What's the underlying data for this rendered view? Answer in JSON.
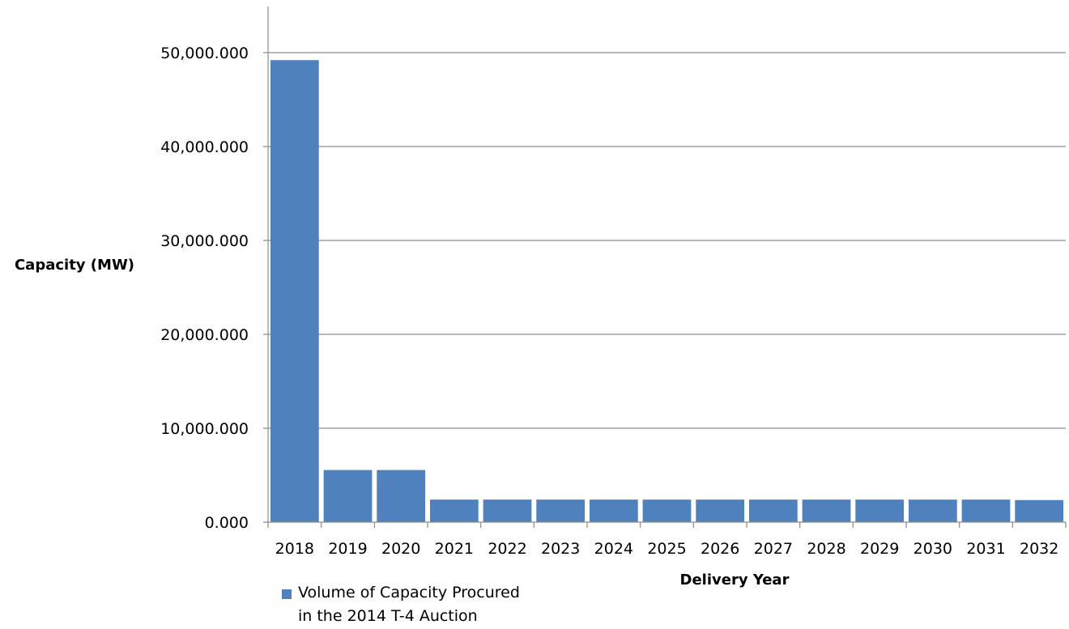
{
  "chart_data": {
    "type": "bar",
    "xlabel": "Delivery Year",
    "ylabel": "Capacity (MW)",
    "categories": [
      "2018",
      "2019",
      "2020",
      "2021",
      "2022",
      "2023",
      "2024",
      "2025",
      "2026",
      "2027",
      "2028",
      "2029",
      "2030",
      "2031",
      "2032"
    ],
    "series": [
      {
        "name": "Volume of Capacity Procured in the 2014 T-4 Auction",
        "values": [
          49200,
          5550,
          5550,
          2400,
          2400,
          2400,
          2400,
          2400,
          2400,
          2400,
          2400,
          2400,
          2400,
          2400,
          2350
        ],
        "color": "#4F81BD"
      }
    ],
    "ylim": [
      0,
      55000
    ],
    "yticks": [
      0,
      10000,
      20000,
      30000,
      40000,
      50000
    ],
    "ytick_labels": [
      "0.000",
      "10,000.000",
      "20,000.000",
      "30,000.000",
      "40,000.000",
      "50,000.000"
    ],
    "grid": true,
    "legend_position": "bottom-left"
  }
}
